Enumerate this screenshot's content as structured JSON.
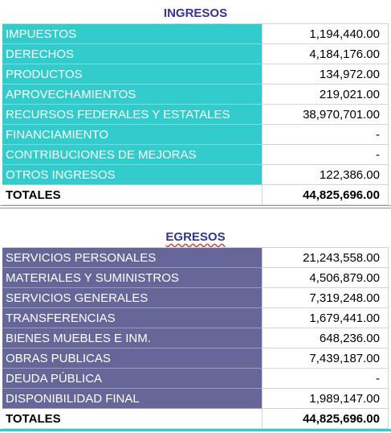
{
  "ingresos": {
    "title": "INGRESOS",
    "rows": [
      [
        "IMPUESTOS",
        "1,194,440.00"
      ],
      [
        "DERECHOS",
        "4,184,176.00"
      ],
      [
        "PRODUCTOS",
        "134,972.00"
      ],
      [
        "APROVECHAMIENTOS",
        "219,021.00"
      ],
      [
        "RECURSOS FEDERALES Y ESTATALES",
        "38,970,701.00"
      ],
      [
        "FINANCIAMIENTO",
        "-"
      ],
      [
        "CONTRIBUCIONES DE MEJORAS",
        "-"
      ],
      [
        "OTROS INGRESOS",
        "122,386.00"
      ]
    ],
    "total": [
      "TOTALES",
      "44,825,696.00"
    ]
  },
  "egresos": {
    "title": "EGRESOS",
    "rows": [
      [
        "SERVICIOS PERSONALES",
        "21,243,558.00"
      ],
      [
        "MATERIALES Y SUMINISTROS",
        "4,506,879.00"
      ],
      [
        "SERVICIOS GENERALES",
        "7,319,248.00"
      ],
      [
        "TRANSFERENCIAS",
        "1,679,441.00"
      ],
      [
        "BIENES MUEBLES E INM.",
        "648,236.00"
      ],
      [
        "OBRAS PUBLICAS",
        "7,439,187.00"
      ],
      [
        "DEUDA PÚBLICA",
        "-"
      ],
      [
        "DISPONIBILIDAD FINAL",
        "1,989,147.00"
      ]
    ],
    "total": [
      "TOTALES",
      "44,825,696.00"
    ]
  }
}
